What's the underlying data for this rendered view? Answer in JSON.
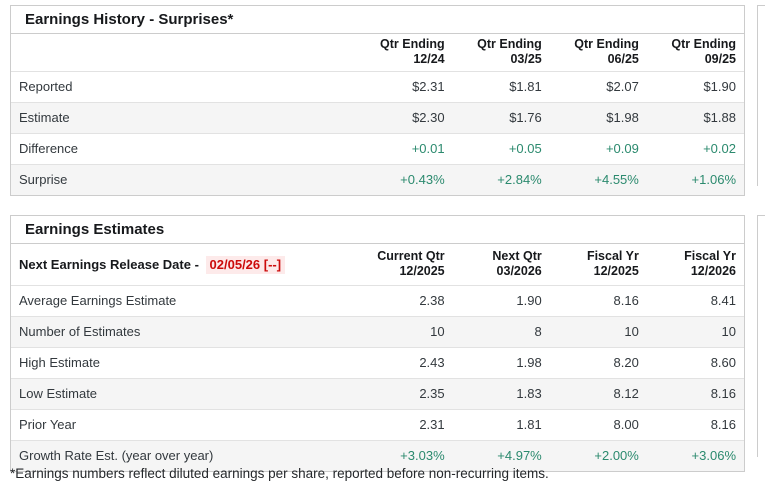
{
  "history": {
    "title": "Earnings History - Surprises*",
    "columns": [
      {
        "line1": "Qtr Ending",
        "line2": "12/24"
      },
      {
        "line1": "Qtr Ending",
        "line2": "03/25"
      },
      {
        "line1": "Qtr Ending",
        "line2": "06/25"
      },
      {
        "line1": "Qtr Ending",
        "line2": "09/25"
      }
    ],
    "rows": [
      {
        "label": "Reported",
        "values": [
          "$2.31",
          "$1.81",
          "$2.07",
          "$1.90"
        ]
      },
      {
        "label": "Estimate",
        "values": [
          "$2.30",
          "$1.76",
          "$1.98",
          "$1.88"
        ]
      },
      {
        "label": "Difference",
        "values": [
          "+0.01",
          "+0.05",
          "+0.09",
          "+0.02"
        ]
      },
      {
        "label": "Surprise",
        "values": [
          "+0.43%",
          "+2.84%",
          "+4.55%",
          "+1.06%"
        ]
      }
    ]
  },
  "estimates": {
    "title": "Earnings Estimates",
    "release_label": "Next Earnings Release Date -",
    "release_date": "02/05/26 [--]",
    "columns": [
      {
        "line1": "Current Qtr",
        "line2": "12/2025"
      },
      {
        "line1": "Next Qtr",
        "line2": "03/2026"
      },
      {
        "line1": "Fiscal Yr",
        "line2": "12/2025"
      },
      {
        "line1": "Fiscal Yr",
        "line2": "12/2026"
      }
    ],
    "rows": [
      {
        "label": "Average Earnings Estimate",
        "values": [
          "2.38",
          "1.90",
          "8.16",
          "8.41"
        ]
      },
      {
        "label": "Number of Estimates",
        "values": [
          "10",
          "8",
          "10",
          "10"
        ]
      },
      {
        "label": "High Estimate",
        "values": [
          "2.43",
          "1.98",
          "8.20",
          "8.60"
        ]
      },
      {
        "label": "Low Estimate",
        "values": [
          "2.35",
          "1.83",
          "8.12",
          "8.16"
        ]
      },
      {
        "label": "Prior Year",
        "values": [
          "2.31",
          "1.81",
          "8.00",
          "8.16"
        ]
      },
      {
        "label": "Growth Rate Est. (year over year)",
        "values": [
          "+3.03%",
          "+4.97%",
          "+2.00%",
          "+3.06%"
        ]
      }
    ]
  },
  "footnote": "*Earnings numbers reflect diluted earnings per share, reported before non-recurring items.",
  "colors": {
    "positive_green": "#2b8a6e",
    "alert_red": "#cc0b0b",
    "alert_background": "#fdeaea",
    "row_stripe": "#f5f5f5",
    "panel_border": "#cccccc"
  }
}
